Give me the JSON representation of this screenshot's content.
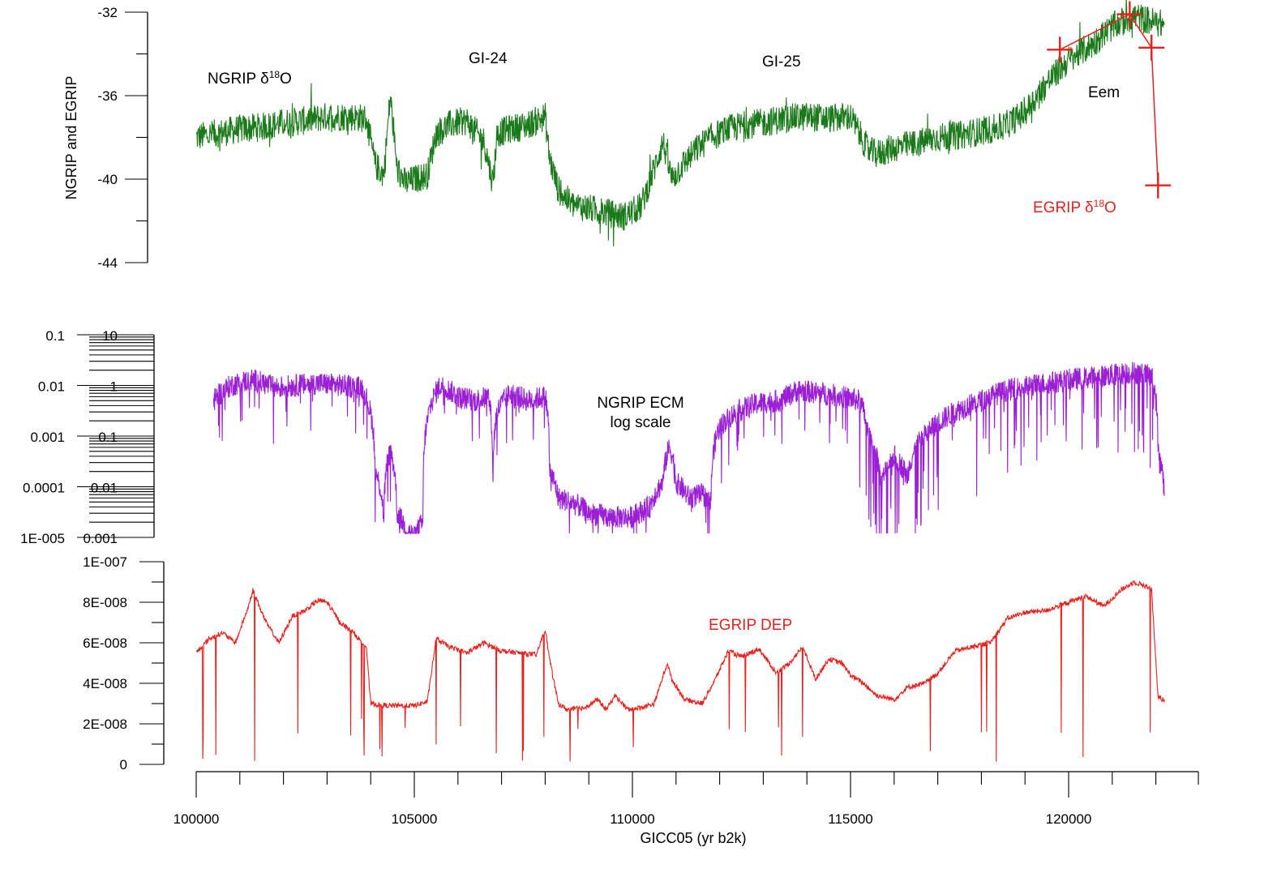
{
  "chart_data": {
    "type": "line",
    "x_axis": {
      "label": "GICC05 (yr b2k)",
      "range": [
        100000,
        123000
      ],
      "tick_labels": [
        "100000",
        "105000",
        "110000",
        "115000",
        "120000"
      ]
    },
    "panels": [
      {
        "id": "d18o",
        "ylabel": "NGRIP and EGRIP",
        "ylim": [
          -44,
          -32
        ],
        "tick_labels": [
          "-32",
          "-36",
          "-40",
          "-44"
        ],
        "annotations": [
          "GI-24",
          "GI-25",
          "Eem"
        ],
        "series": [
          {
            "name": "NGRIP δ18O",
            "color": "#1a7a1a",
            "x": [
              100000,
              100500,
              101000,
              101500,
              102000,
              102500,
              103000,
              103500,
              103900,
              104100,
              104300,
              104450,
              104600,
              104800,
              105000,
              105300,
              105500,
              105800,
              106200,
              106600,
              106800,
              106900,
              107200,
              107600,
              108000,
              108100,
              108300,
              108600,
              109000,
              109400,
              109800,
              110200,
              110500,
              110700,
              110900,
              111200,
              111500,
              111800,
              112200,
              112600,
              113000,
              113500,
              114000,
              114500,
              115000,
              115400,
              115600,
              116000,
              116500,
              117000,
              117500,
              118000,
              118500,
              119000,
              119500,
              120000,
              120500,
              121000,
              121500,
              122000,
              122200
            ],
            "y": [
              -38,
              -37.8,
              -37.6,
              -37.5,
              -37.3,
              -37.2,
              -37.0,
              -37.0,
              -37.1,
              -39.3,
              -39.8,
              -36.0,
              -39.5,
              -40.2,
              -40.0,
              -39.8,
              -37.8,
              -37.4,
              -37.2,
              -38.2,
              -40.2,
              -37.8,
              -37.6,
              -37.4,
              -37.0,
              -39.0,
              -40.5,
              -41.2,
              -41.4,
              -41.6,
              -41.8,
              -41.3,
              -39.5,
              -38.2,
              -40.0,
              -39.2,
              -38.5,
              -38.0,
              -37.6,
              -37.4,
              -37.3,
              -37.1,
              -37.0,
              -37.1,
              -37.0,
              -38.6,
              -38.8,
              -38.5,
              -38.3,
              -38.0,
              -37.9,
              -37.7,
              -37.5,
              -36.8,
              -35.4,
              -34.3,
              -33.6,
              -32.7,
              -32.2,
              -32.5,
              -32.6
            ]
          },
          {
            "name": "EGRIP δ18O",
            "color": "#e8201e",
            "x": [
              119800,
              121400,
              121900,
              122050
            ],
            "y": [
              -33.8,
              -32.1,
              -33.7,
              -40.3
            ]
          }
        ]
      },
      {
        "id": "ecm",
        "ylabel": "",
        "scale": "log",
        "tick_labels_outer": [
          "0.1",
          "0.01",
          "0.001",
          "0.0001",
          "1E-005"
        ],
        "tick_labels_inner": [
          "10",
          "1",
          "0.1",
          "0.01",
          "0.001"
        ],
        "annotations": [
          "NGRIP ECM",
          "log scale"
        ],
        "series": [
          {
            "name": "NGRIP ECM",
            "color": "#9b1fd4",
            "x": [
              100400,
              100800,
              101300,
              101800,
              102300,
              102800,
              103300,
              103800,
              103950,
              104100,
              104300,
              104450,
              104600,
              104800,
              105000,
              105200,
              105300,
              105600,
              106000,
              106400,
              106700,
              106800,
              106900,
              107200,
              107600,
              108000,
              108100,
              108300,
              108600,
              109000,
              109500,
              110000,
              110400,
              110700,
              110850,
              111000,
              111300,
              111600,
              111800,
              112000,
              112400,
              112900,
              113400,
              113800,
              114300,
              114800,
              115200,
              115400,
              115700,
              116000,
              116300,
              116600,
              116900,
              117400,
              118000,
              118600,
              119200,
              119800,
              120400,
              121000,
              121500,
              121900,
              122050,
              122200
            ],
            "y": [
              0.5,
              1.0,
              1.3,
              0.9,
              1.0,
              1.1,
              1.0,
              0.9,
              0.4,
              0.02,
              0.002,
              0.05,
              0.003,
              0.0015,
              0.001,
              0.002,
              0.2,
              1.0,
              0.6,
              0.5,
              0.6,
              0.003,
              0.3,
              0.7,
              0.5,
              0.6,
              0.02,
              0.006,
              0.005,
              0.003,
              0.0025,
              0.0025,
              0.004,
              0.012,
              0.06,
              0.012,
              0.006,
              0.007,
              0.005,
              0.15,
              0.3,
              0.45,
              0.5,
              0.8,
              0.7,
              0.6,
              0.5,
              0.1,
              0.01,
              0.04,
              0.015,
              0.08,
              0.15,
              0.3,
              0.5,
              0.8,
              1.0,
              1.2,
              1.4,
              1.6,
              1.8,
              1.5,
              0.05,
              0.005
            ]
          }
        ]
      },
      {
        "id": "dep",
        "ylabel": "",
        "ylim": [
          0,
          1e-07
        ],
        "tick_labels": [
          "1E-007",
          "8E-008",
          "6E-008",
          "4E-008",
          "2E-008",
          "0"
        ],
        "annotations": [],
        "series": [
          {
            "name": "EGRIP DEP",
            "color": "#e8201e",
            "x": [
              100000,
              100300,
              100600,
              100900,
              101200,
              101300,
              101600,
              101900,
              102200,
              102500,
              102800,
              103000,
              103300,
              103600,
              103900,
              104000,
              104300,
              104700,
              105000,
              105300,
              105500,
              105800,
              106200,
              106600,
              107000,
              107400,
              107800,
              108000,
              108100,
              108300,
              108500,
              108900,
              109200,
              109400,
              109600,
              109900,
              110200,
              110500,
              110800,
              110900,
              111200,
              111600,
              111900,
              112200,
              112500,
              112900,
              113300,
              113600,
              113900,
              114200,
              114500,
              114800,
              115000,
              115300,
              115600,
              116000,
              116300,
              116700,
              117000,
              117400,
              117800,
              118200,
              118600,
              119000,
              119500,
              120000,
              120400,
              120800,
              121200,
              121500,
              121900,
              122050,
              122200
            ],
            "y": [
              5.5e-08,
              6.2e-08,
              6.5e-08,
              6e-08,
              7.8e-08,
              8.6e-08,
              7e-08,
              6e-08,
              7.3e-08,
              7.6e-08,
              8.1e-08,
              8e-08,
              7e-08,
              6.5e-08,
              5.8e-08,
              3e-08,
              2.9e-08,
              2.9e-08,
              2.9e-08,
              3.1e-08,
              6.2e-08,
              5.8e-08,
              5.5e-08,
              6e-08,
              5.6e-08,
              5.5e-08,
              5.4e-08,
              6.7e-08,
              5.2e-08,
              3e-08,
              2.7e-08,
              2.8e-08,
              3.2e-08,
              2.7e-08,
              3.4e-08,
              2.7e-08,
              2.8e-08,
              3e-08,
              5e-08,
              4.2e-08,
              3.2e-08,
              3e-08,
              4.2e-08,
              5.6e-08,
              5.3e-08,
              5.7e-08,
              4.5e-08,
              5e-08,
              5.8e-08,
              4.2e-08,
              5.2e-08,
              5e-08,
              4.4e-08,
              4e-08,
              3.4e-08,
              3.2e-08,
              3.8e-08,
              4e-08,
              4.5e-08,
              5.6e-08,
              5.8e-08,
              6e-08,
              7.2e-08,
              7.5e-08,
              7.6e-08,
              8e-08,
              8.3e-08,
              7.8e-08,
              8.6e-08,
              9e-08,
              8.7e-08,
              3.3e-08,
              3.2e-08
            ]
          }
        ]
      }
    ]
  }
}
